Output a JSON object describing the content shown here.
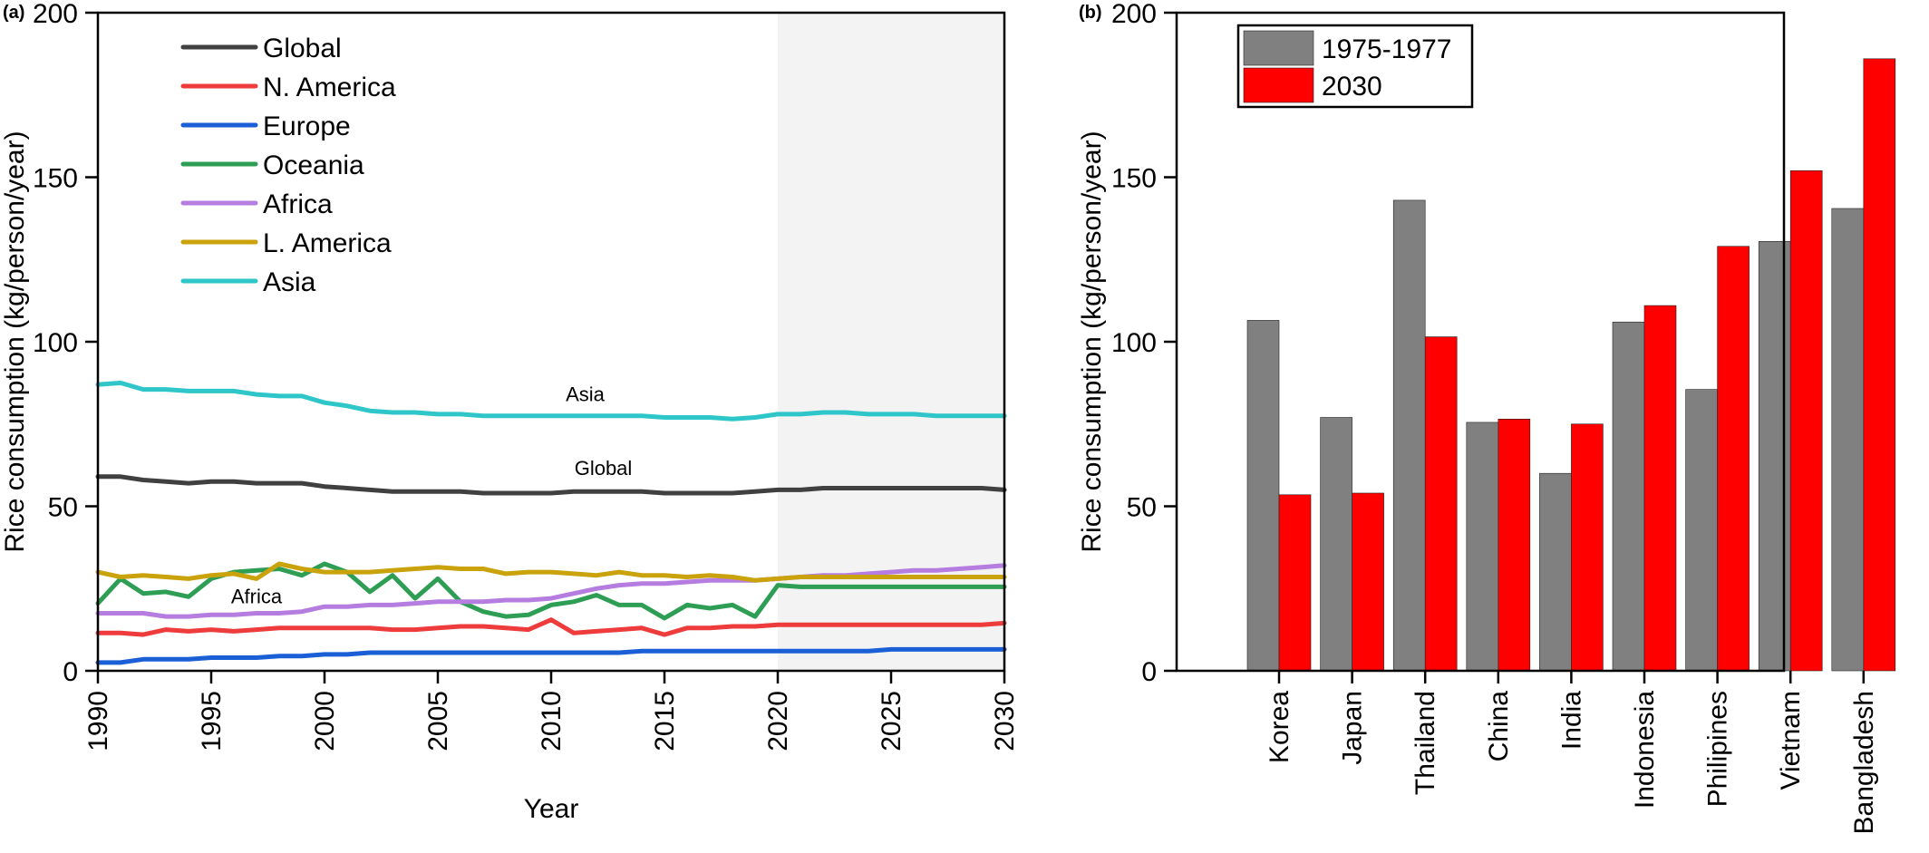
{
  "chart_data": [
    {
      "panel_label": "(a)",
      "type": "line",
      "xlabel": "Year",
      "ylabel": "Rice consumption (kg/person/year)",
      "xlim": [
        1990,
        2030
      ],
      "ylim": [
        0,
        200
      ],
      "xticks": [
        1990,
        1995,
        2000,
        2005,
        2010,
        2015,
        2020,
        2025,
        2030
      ],
      "yticks": [
        0,
        50,
        100,
        150,
        200
      ],
      "grid": false,
      "legend": "top-left",
      "shaded_region": {
        "from": 2020,
        "to": 2030,
        "color": "#f3f3f3"
      },
      "x": [
        1990,
        1991,
        1992,
        1993,
        1994,
        1995,
        1996,
        1997,
        1998,
        1999,
        2000,
        2001,
        2002,
        2003,
        2004,
        2005,
        2006,
        2007,
        2008,
        2009,
        2010,
        2011,
        2012,
        2013,
        2014,
        2015,
        2016,
        2017,
        2018,
        2019,
        2020,
        2021,
        2022,
        2023,
        2024,
        2025,
        2026,
        2027,
        2028,
        2029,
        2030
      ],
      "series": [
        {
          "name": "Global",
          "color": "#404040",
          "values": [
            59,
            59,
            58,
            57.5,
            57,
            57.5,
            57.5,
            57,
            57,
            57,
            56,
            55.5,
            55,
            54.5,
            54.5,
            54.5,
            54.5,
            54,
            54,
            54,
            54,
            54.5,
            54.5,
            54.5,
            54.5,
            54,
            54,
            54,
            54,
            54.5,
            55,
            55,
            55.5,
            55.5,
            55.5,
            55.5,
            55.5,
            55.5,
            55.5,
            55.5,
            55
          ]
        },
        {
          "name": "N. America",
          "color": "#ee3b3b",
          "values": [
            11.5,
            11.5,
            11,
            12.5,
            12,
            12.5,
            12,
            12.5,
            13,
            13,
            13,
            13,
            13,
            12.5,
            12.5,
            13,
            13.5,
            13.5,
            13,
            12.5,
            15.5,
            11.5,
            12,
            12.5,
            13,
            11,
            13,
            13,
            13.5,
            13.5,
            14,
            14,
            14,
            14,
            14,
            14,
            14,
            14,
            14,
            14,
            14.5
          ]
        },
        {
          "name": "Europe",
          "color": "#1a5fd6",
          "values": [
            2.5,
            2.5,
            3.5,
            3.5,
            3.5,
            4,
            4,
            4,
            4.5,
            4.5,
            5,
            5,
            5.5,
            5.5,
            5.5,
            5.5,
            5.5,
            5.5,
            5.5,
            5.5,
            5.5,
            5.5,
            5.5,
            5.5,
            6,
            6,
            6,
            6,
            6,
            6,
            6,
            6,
            6,
            6,
            6,
            6.5,
            6.5,
            6.5,
            6.5,
            6.5,
            6.5
          ]
        },
        {
          "name": "Oceania",
          "color": "#2e9e55",
          "values": [
            20.5,
            28,
            23.5,
            24,
            22.5,
            28,
            30,
            30.5,
            31,
            29,
            32.5,
            30,
            24,
            29,
            22,
            28,
            21,
            18,
            16.5,
            17,
            20,
            21,
            23,
            20,
            20,
            16,
            20,
            19,
            20,
            16.5,
            26,
            25.5,
            25.5,
            25.5,
            25.5,
            25.5,
            25.5,
            25.5,
            25.5,
            25.5,
            25.5
          ]
        },
        {
          "name": "Africa",
          "color": "#b57de0",
          "values": [
            17.5,
            17.5,
            17.5,
            16.5,
            16.5,
            17,
            17,
            17.5,
            17.5,
            18,
            19.5,
            19.5,
            20,
            20,
            20.5,
            21,
            21,
            21,
            21.5,
            21.5,
            22,
            23.5,
            25,
            26,
            26.5,
            26.5,
            27,
            27.5,
            27.5,
            27.5,
            28,
            28.5,
            29,
            29,
            29.5,
            30,
            30.5,
            30.5,
            31,
            31.5,
            32
          ]
        },
        {
          "name": "L. America",
          "color": "#c9a20c",
          "values": [
            30,
            28.5,
            29,
            28.5,
            28,
            29,
            29.5,
            28,
            32.5,
            31,
            30,
            30,
            30,
            30.5,
            31,
            31.5,
            31,
            31,
            29.5,
            30,
            30,
            29.5,
            29,
            30,
            29,
            29,
            28.5,
            29,
            28.5,
            27.5,
            28,
            28.5,
            28.5,
            28.5,
            28.5,
            28.5,
            28.5,
            28.5,
            28.5,
            28.5,
            28.5
          ]
        },
        {
          "name": "Asia",
          "color": "#2ec6c8",
          "values": [
            87,
            87.5,
            85.5,
            85.5,
            85,
            85,
            85,
            84,
            83.5,
            83.5,
            81.5,
            80.5,
            79,
            78.5,
            78.5,
            78,
            78,
            77.5,
            77.5,
            77.5,
            77.5,
            77.5,
            77.5,
            77.5,
            77.5,
            77,
            77,
            77,
            76.5,
            77,
            78,
            78,
            78.5,
            78.5,
            78,
            78,
            78,
            77.5,
            77.5,
            77.5,
            77.5
          ]
        }
      ],
      "annotations": [
        {
          "text": "Asia",
          "x": 2011.5,
          "y": 82
        },
        {
          "text": "Global",
          "x": 2012.3,
          "y": 59.5
        },
        {
          "text": "Africa",
          "x": 1997,
          "y": 20.5
        }
      ]
    },
    {
      "panel_label": "(b)",
      "type": "bar",
      "ylabel": "Rice consumption (kg/person/year)",
      "ylim": [
        0,
        200
      ],
      "yticks": [
        0,
        50,
        100,
        150,
        200
      ],
      "grid": false,
      "legend": "top-left",
      "categories": [
        "Korea",
        "Japan",
        "Thailand",
        "China",
        "India",
        "Indonesia",
        "Philipines",
        "Vietnam",
        "Bangladesh"
      ],
      "series": [
        {
          "name": "1975-1977",
          "color": "#808080",
          "values": [
            106.5,
            77,
            143,
            75.5,
            60,
            106,
            85.5,
            130.5,
            140.5
          ]
        },
        {
          "name": "2030",
          "color": "#ff0000",
          "values": [
            53.5,
            54,
            101.5,
            76.5,
            75,
            111,
            129,
            152,
            186
          ]
        }
      ]
    }
  ]
}
